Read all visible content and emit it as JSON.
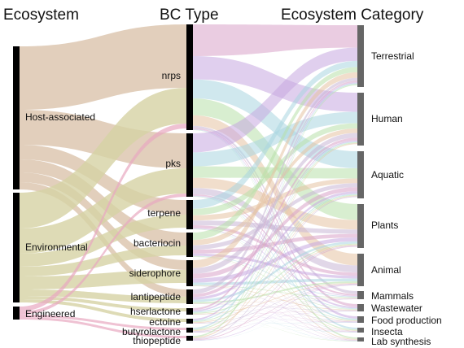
{
  "headers": {
    "left": "Ecosystem",
    "middle": "BC Type",
    "right": "Ecosystem Category"
  },
  "left_nodes": [
    "Host-associated",
    "Environmental",
    "Engineered"
  ],
  "middle_nodes": [
    "nrps",
    "pks",
    "terpene",
    "bacteriocin",
    "siderophore",
    "lantipeptide",
    "hserlactone",
    "ectoine",
    "butyrolactone",
    "thiopeptide"
  ],
  "right_nodes": [
    "Terrestrial",
    "Human",
    "Aquatic",
    "Plants",
    "Animal",
    "Mammals",
    "Wastewater",
    "Food production",
    "Insecta",
    "Lab synthesis"
  ],
  "colors": {
    "left_bar": "#000000",
    "middle_bar": "#000000",
    "right_bar": "#666666",
    "host_flow": "#d8bfa6",
    "environmental_flow": "#d6d2a4",
    "engineered_flow": "#e8a8c0",
    "flow_palette": [
      "#d9a3c8",
      "#c7a8e0",
      "#a9d6e0",
      "#b8e0a9",
      "#e6c2a3",
      "#c9b7d6"
    ]
  }
}
